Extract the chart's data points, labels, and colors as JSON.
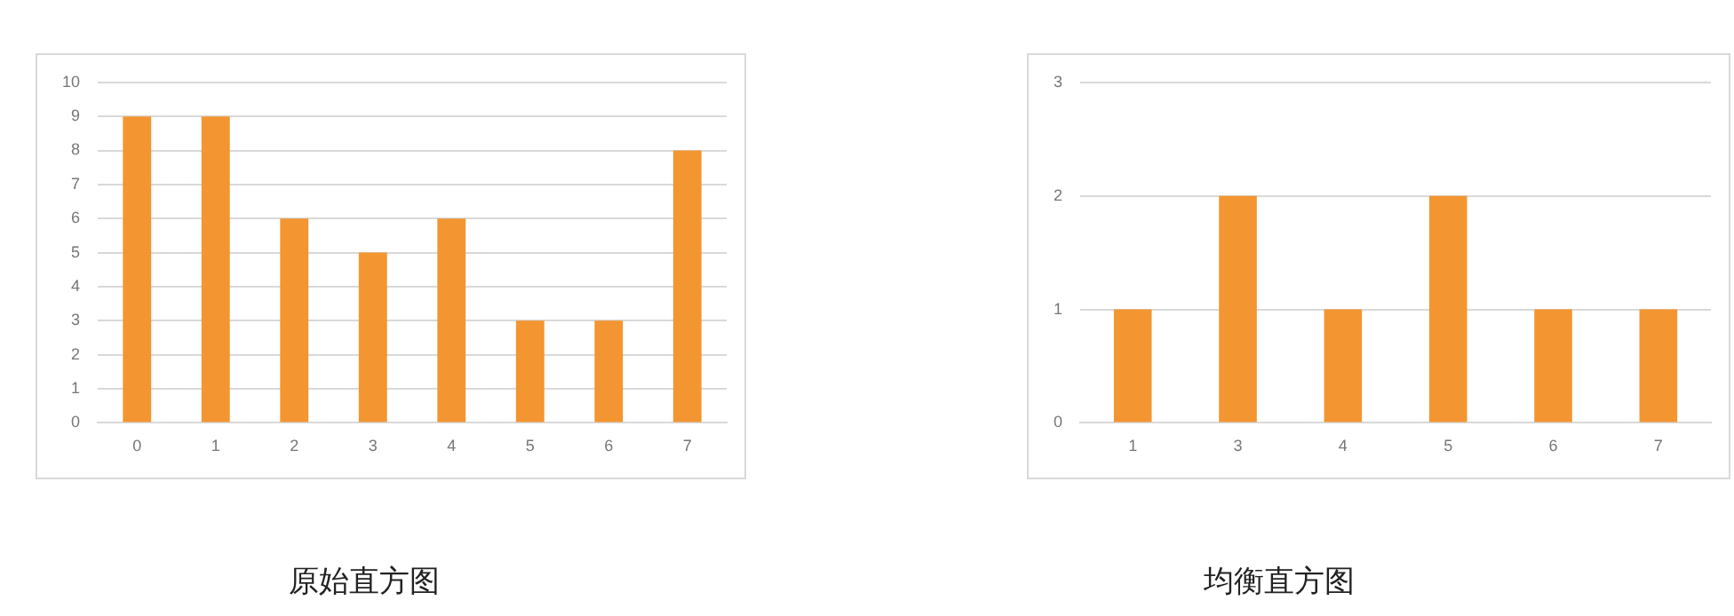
{
  "chart_data": [
    {
      "type": "bar",
      "title": "原始直方图",
      "categories": [
        "0",
        "1",
        "2",
        "3",
        "4",
        "5",
        "6",
        "7"
      ],
      "values": [
        9,
        9,
        6,
        5,
        6,
        3,
        3,
        8
      ],
      "color": "#f39531",
      "ylim": [
        0,
        10
      ],
      "yticks": [
        0,
        1,
        2,
        3,
        4,
        5,
        6,
        7,
        8,
        9,
        10
      ],
      "grid": "y"
    },
    {
      "type": "bar",
      "title": "均衡直方图",
      "categories": [
        "1",
        "3",
        "4",
        "5",
        "6",
        "7"
      ],
      "values": [
        1,
        2,
        1,
        2,
        1,
        1
      ],
      "color": "#f39531",
      "ylim": [
        0,
        3
      ],
      "yticks": [
        0,
        1,
        2,
        3
      ],
      "grid": "y"
    }
  ]
}
